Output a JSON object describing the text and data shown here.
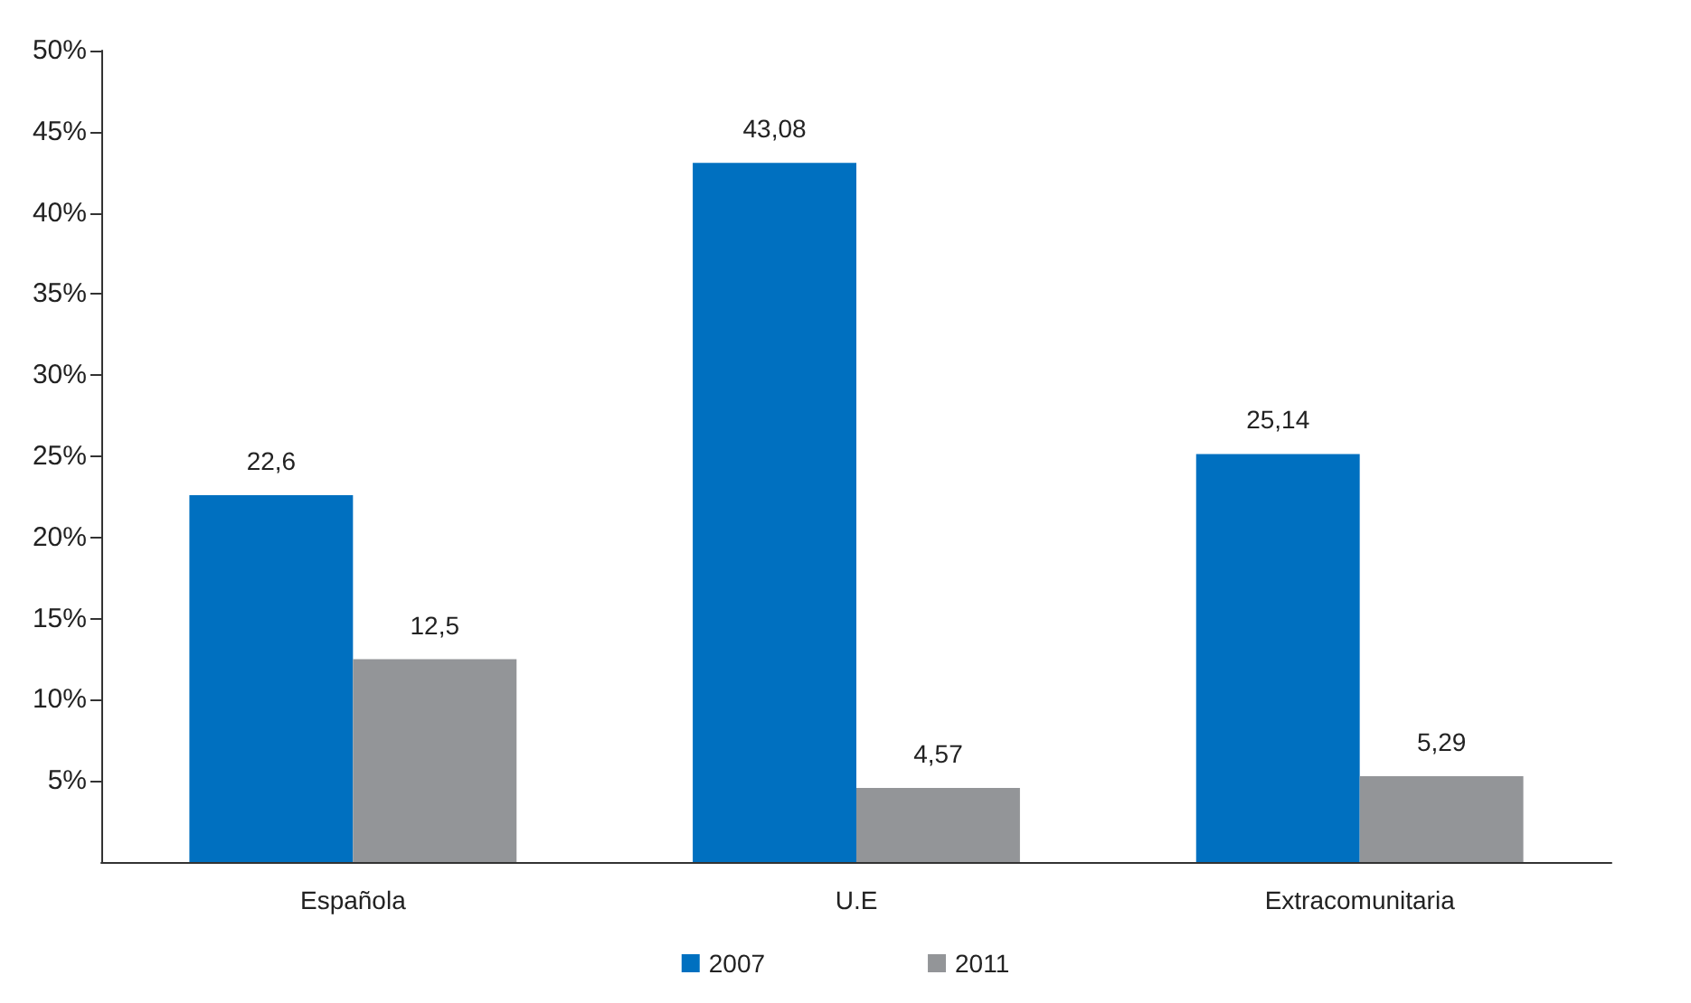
{
  "chart_data": {
    "type": "bar",
    "categories": [
      "Española",
      "U.E",
      "Extracomunitaria"
    ],
    "series": [
      {
        "name": "2007",
        "color": "#0070c0",
        "values": [
          22.6,
          43.08,
          25.14
        ],
        "value_labels": [
          "22,6",
          "43,08",
          "25,14"
        ]
      },
      {
        "name": "2011",
        "color": "#939598",
        "values": [
          12.5,
          4.57,
          5.29
        ],
        "value_labels": [
          "12,5",
          "4,57",
          "5,29"
        ]
      }
    ],
    "ylim": [
      0,
      50
    ],
    "yticks": [
      {
        "value": 5,
        "label": "5%"
      },
      {
        "value": 10,
        "label": "10%"
      },
      {
        "value": 15,
        "label": "15%"
      },
      {
        "value": 20,
        "label": "20%"
      },
      {
        "value": 25,
        "label": "25%"
      },
      {
        "value": 30,
        "label": "30%"
      },
      {
        "value": 35,
        "label": "35%"
      },
      {
        "value": 40,
        "label": "40%"
      },
      {
        "value": 45,
        "label": "45%"
      },
      {
        "value": 50,
        "label": "50%"
      }
    ],
    "grid": false,
    "legend": "bottom"
  }
}
